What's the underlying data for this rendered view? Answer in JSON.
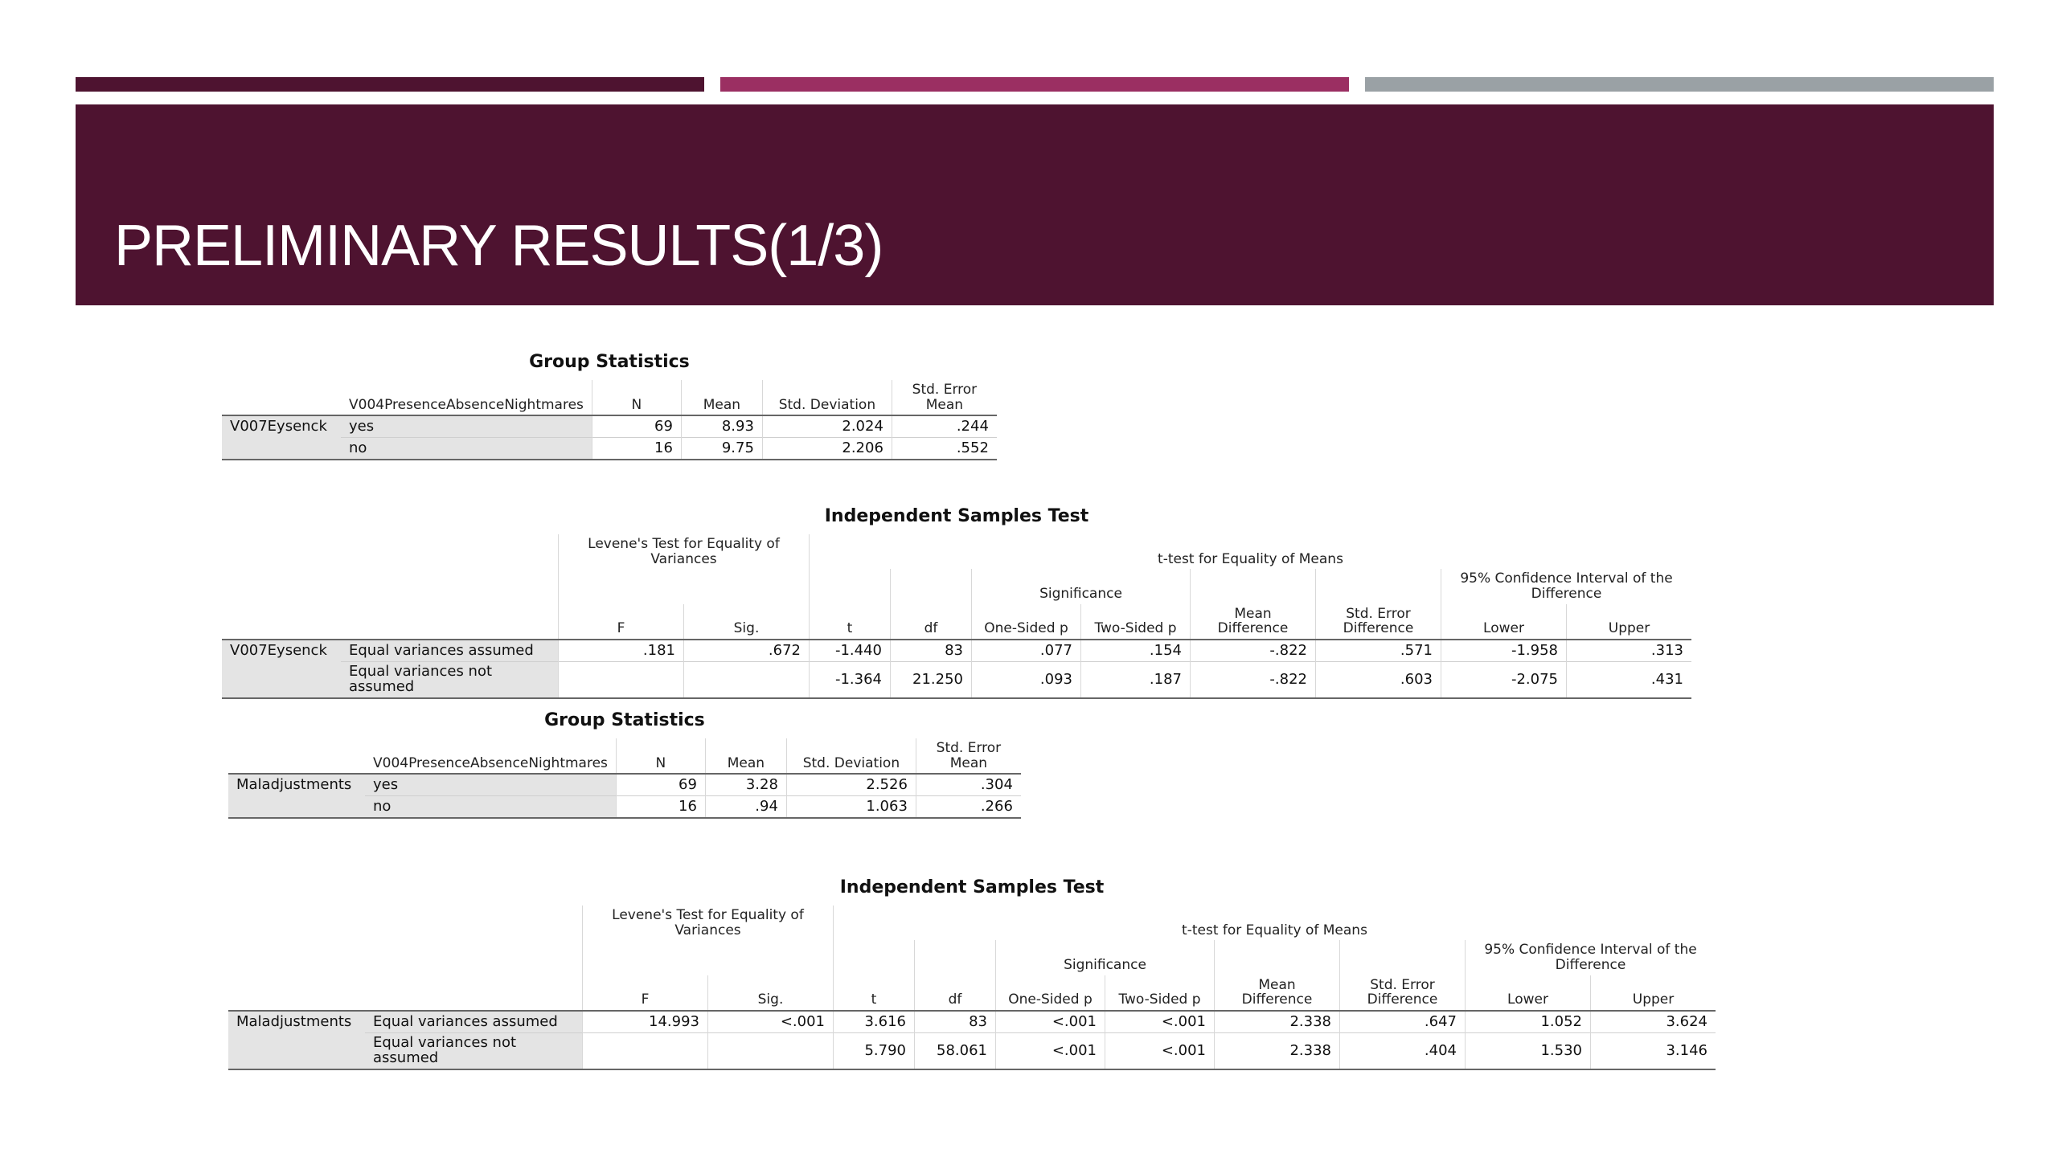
{
  "slide": {
    "title": "PRELIMINARY RESULTS(1/3)"
  },
  "colors": {
    "banner": "#4e1330",
    "accent1": "#4e1330",
    "accent2": "#9b2f62",
    "accent3": "#9aa1a5"
  },
  "group1": {
    "caption": "Group Statistics",
    "headers": {
      "group_var": "V004PresenceAbsenceNightmares",
      "n": "N",
      "mean": "Mean",
      "sd": "Std. Deviation",
      "sem": "Std. Error Mean"
    },
    "variable": "V007Eysenck",
    "rows": [
      {
        "group": "yes",
        "n": "69",
        "mean": "8.93",
        "sd": "2.024",
        "sem": ".244"
      },
      {
        "group": "no",
        "n": "16",
        "mean": "9.75",
        "sd": "2.206",
        "sem": ".552"
      }
    ]
  },
  "ttest1": {
    "caption": "Independent Samples Test",
    "headers": {
      "levene": "Levene's Test for Equality of Variances",
      "ttest": "t-test for Equality of Means",
      "significance": "Significance",
      "ci": "95% Confidence Interval of the Difference",
      "f": "F",
      "sig": "Sig.",
      "t": "t",
      "df": "df",
      "one_sided": "One-Sided p",
      "two_sided": "Two-Sided p",
      "mean_diff": "Mean Difference",
      "se_diff": "Std. Error Difference",
      "lower": "Lower",
      "upper": "Upper"
    },
    "variable": "V007Eysenck",
    "rows": [
      {
        "label": "Equal variances assumed",
        "f": ".181",
        "sig": ".672",
        "t": "-1.440",
        "df": "83",
        "one": ".077",
        "two": ".154",
        "md": "-.822",
        "se": ".571",
        "lower": "-1.958",
        "upper": ".313"
      },
      {
        "label": "Equal variances not assumed",
        "f": "",
        "sig": "",
        "t": "-1.364",
        "df": "21.250",
        "one": ".093",
        "two": ".187",
        "md": "-.822",
        "se": ".603",
        "lower": "-2.075",
        "upper": ".431"
      }
    ]
  },
  "group2": {
    "caption": "Group Statistics",
    "headers": {
      "group_var": "V004PresenceAbsenceNightmares",
      "n": "N",
      "mean": "Mean",
      "sd": "Std. Deviation",
      "sem": "Std. Error Mean"
    },
    "variable": "Maladjustments",
    "rows": [
      {
        "group": "yes",
        "n": "69",
        "mean": "3.28",
        "sd": "2.526",
        "sem": ".304"
      },
      {
        "group": "no",
        "n": "16",
        "mean": ".94",
        "sd": "1.063",
        "sem": ".266"
      }
    ]
  },
  "ttest2": {
    "caption": "Independent Samples Test",
    "headers": {
      "levene": "Levene's Test for Equality of Variances",
      "ttest": "t-test for Equality of Means",
      "significance": "Significance",
      "ci": "95% Confidence Interval of the Difference",
      "f": "F",
      "sig": "Sig.",
      "t": "t",
      "df": "df",
      "one_sided": "One-Sided p",
      "two_sided": "Two-Sided p",
      "mean_diff": "Mean Difference",
      "se_diff": "Std. Error Difference",
      "lower": "Lower",
      "upper": "Upper"
    },
    "variable": "Maladjustments",
    "rows": [
      {
        "label": "Equal variances assumed",
        "f": "14.993",
        "sig": "<.001",
        "t": "3.616",
        "df": "83",
        "one": "<.001",
        "two": "<.001",
        "md": "2.338",
        "se": ".647",
        "lower": "1.052",
        "upper": "3.624"
      },
      {
        "label": "Equal variances not assumed",
        "f": "",
        "sig": "",
        "t": "5.790",
        "df": "58.061",
        "one": "<.001",
        "two": "<.001",
        "md": "2.338",
        "se": ".404",
        "lower": "1.530",
        "upper": "3.146"
      }
    ]
  }
}
